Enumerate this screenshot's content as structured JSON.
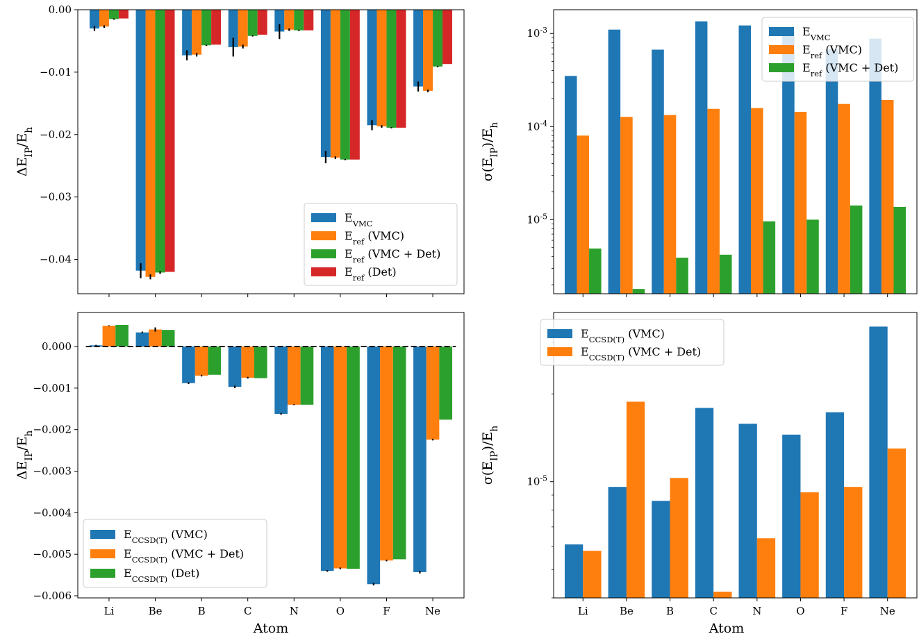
{
  "figure": {
    "shared_xlabel": "Atom",
    "atoms": [
      "Li",
      "Be",
      "B",
      "C",
      "N",
      "O",
      "F",
      "Ne"
    ]
  },
  "chart_data": [
    {
      "id": "top-left",
      "type": "bar",
      "title": "",
      "ylabel": "ΔE_IP/E_h",
      "xlabel": "",
      "ylim": [
        -0.0455,
        0.0
      ],
      "yscale": "linear",
      "yticks": [
        0.0,
        -0.01,
        -0.02,
        -0.03,
        -0.04
      ],
      "ytick_labels": [
        "0.00",
        "−0.01",
        "−0.02",
        "−0.03",
        "−0.04"
      ],
      "categories": [
        "Li",
        "Be",
        "B",
        "C",
        "N",
        "O",
        "F",
        "Ne"
      ],
      "show_xtick_labels": false,
      "legend_position": "lower-right",
      "series": [
        {
          "name": "E_VMC",
          "color": "#1f77b4",
          "values": [
            -0.003,
            -0.0418,
            -0.0073,
            -0.006,
            -0.0035,
            -0.0236,
            -0.0185,
            -0.0123
          ],
          "errors": [
            0.0004,
            0.0012,
            0.0008,
            0.0015,
            0.0012,
            0.001,
            0.0008,
            0.0008
          ]
        },
        {
          "name": "E_ref (VMC)",
          "color": "#ff7f0e",
          "values": [
            -0.0027,
            -0.0428,
            -0.0072,
            -0.0059,
            -0.0032,
            -0.0237,
            -0.0187,
            -0.013
          ],
          "errors": [
            0.0002,
            0.0004,
            0.0003,
            0.0003,
            0.0002,
            0.0002,
            0.0002,
            0.0002
          ]
        },
        {
          "name": "E_ref (VMC + Det)",
          "color": "#2ca02c",
          "values": [
            -0.0015,
            -0.0421,
            -0.0057,
            -0.0042,
            -0.0033,
            -0.024,
            -0.0189,
            -0.0091
          ],
          "errors": [
            0.0001,
            0.0002,
            0.0001,
            0.0001,
            0.0001,
            0.0001,
            0.0001,
            0.0001
          ]
        },
        {
          "name": "E_ref (Det)",
          "color": "#d62728",
          "values": [
            -0.0014,
            -0.042,
            -0.0056,
            -0.004,
            -0.0033,
            -0.024,
            -0.0189,
            -0.0087
          ],
          "errors": [
            0,
            0,
            0,
            0,
            0,
            0,
            0,
            0
          ]
        }
      ]
    },
    {
      "id": "top-right",
      "type": "bar",
      "title": "",
      "ylabel": "σ(E_IP)/E_h",
      "xlabel": "",
      "yscale": "log",
      "ylim": [
        1.6e-06,
        0.0018
      ],
      "yticks": [
        1e-05,
        0.0001,
        0.001
      ],
      "ytick_labels": [
        "10^-5",
        "10^-4",
        "10^-3"
      ],
      "categories": [
        "Li",
        "Be",
        "B",
        "C",
        "N",
        "O",
        "F",
        "Ne"
      ],
      "show_xtick_labels": false,
      "legend_position": "top-right",
      "series": [
        {
          "name": "E_VMC",
          "color": "#1f77b4",
          "values": [
            0.00035,
            0.0011,
            0.00067,
            0.00135,
            0.00122,
            0.00105,
            0.00068,
            0.00088
          ]
        },
        {
          "name": "E_ref (VMC)",
          "color": "#ff7f0e",
          "values": [
            8e-05,
            0.000127,
            0.000133,
            0.000155,
            0.000158,
            0.000144,
            0.000175,
            0.000193
          ]
        },
        {
          "name": "E_ref (VMC + Det)",
          "color": "#2ca02c",
          "values": [
            4.9e-06,
            1.8e-06,
            3.9e-06,
            4.2e-06,
            9.6e-06,
            1e-05,
            1.42e-05,
            1.37e-05
          ]
        }
      ]
    },
    {
      "id": "bottom-left",
      "type": "bar",
      "title": "",
      "ylabel": "ΔE_IP/E_h",
      "xlabel": "Atom",
      "yscale": "linear",
      "ylim": [
        -0.00605,
        0.00082
      ],
      "yticks": [
        0.0,
        -0.001,
        -0.002,
        -0.003,
        -0.004,
        -0.005,
        -0.006
      ],
      "ytick_labels": [
        "0.000",
        "−0.001",
        "−0.002",
        "−0.003",
        "−0.004",
        "−0.005",
        "−0.006"
      ],
      "categories": [
        "Li",
        "Be",
        "B",
        "C",
        "N",
        "O",
        "F",
        "Ne"
      ],
      "show_xtick_labels": true,
      "reference_line": 0.0,
      "legend_position": "lower-left",
      "series": [
        {
          "name": "E_CCSD(T) (VMC)",
          "color": "#1f77b4",
          "values": [
            3e-05,
            0.00034,
            -0.00088,
            -0.00097,
            -0.00162,
            -0.0054,
            -0.00572,
            -0.00543
          ],
          "errors": [
            1e-05,
            2e-05,
            2e-05,
            3e-05,
            2e-05,
            2e-05,
            3e-05,
            3e-05
          ]
        },
        {
          "name": "E_CCSD(T) (VMC + Det)",
          "color": "#ff7f0e",
          "values": [
            0.0005,
            0.00041,
            -0.0007,
            -0.00075,
            -0.0014,
            -0.00534,
            -0.00515,
            -0.00224
          ],
          "errors": [
            1e-05,
            5e-05,
            2e-05,
            2e-05,
            1e-05,
            2e-05,
            2e-05,
            2e-05
          ]
        },
        {
          "name": "E_CCSD(T) (Det)",
          "color": "#2ca02c",
          "values": [
            0.00052,
            0.0004,
            -0.00068,
            -0.00076,
            -0.0014,
            -0.00535,
            -0.00512,
            -0.00176
          ],
          "errors": [
            0,
            0,
            0,
            0,
            0,
            0,
            0,
            0
          ]
        }
      ]
    },
    {
      "id": "bottom-right",
      "type": "bar",
      "title": "",
      "ylabel": "σ(E_IP)/E_h",
      "xlabel": "Atom",
      "yscale": "log",
      "ylim": [
        4e-06,
        3.8e-05
      ],
      "yticks": [
        1e-05
      ],
      "ytick_labels": [
        "10^-5"
      ],
      "categories": [
        "Li",
        "Be",
        "B",
        "C",
        "N",
        "O",
        "F",
        "Ne"
      ],
      "show_xtick_labels": true,
      "legend_position": "top-left",
      "series": [
        {
          "name": "E_CCSD(T) (VMC)",
          "color": "#1f77b4",
          "values": [
            6.1e-06,
            9.6e-06,
            8.6e-06,
            1.79e-05,
            1.58e-05,
            1.45e-05,
            1.73e-05,
            3.4e-05
          ]
        },
        {
          "name": "E_CCSD(T) (VMC + Det)",
          "color": "#ff7f0e",
          "values": [
            5.8e-06,
            1.88e-05,
            1.03e-05,
            4.2e-06,
            6.4e-06,
            9.2e-06,
            9.6e-06,
            1.3e-05
          ]
        }
      ]
    }
  ]
}
